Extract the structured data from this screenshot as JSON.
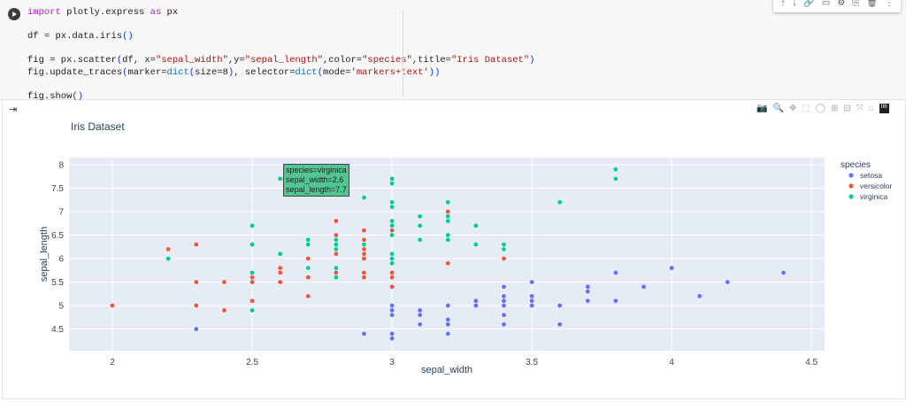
{
  "code": [
    [
      [
        "import",
        "kw"
      ],
      " plotly.express ",
      [
        "as",
        "kw"
      ],
      " px"
    ],
    [],
    [
      "df = px.data.iris",
      [
        "()",
        "par"
      ]
    ],
    [],
    [
      "fig = px.scatter",
      [
        "(",
        "par"
      ],
      "df, x=",
      [
        "\"sepal_width\"",
        "str"
      ],
      ",y=",
      [
        "\"sepal_length\"",
        "str"
      ],
      ",color=",
      [
        "\"species\"",
        "str"
      ],
      ",title=",
      [
        "\"Iris Dataset\"",
        "str"
      ],
      [
        ")",
        "par"
      ]
    ],
    [
      "fig.update_traces",
      [
        "(",
        "par"
      ],
      "marker=",
      [
        "dict",
        "fn"
      ],
      [
        "(",
        "par"
      ],
      "size=8",
      [
        ")",
        "par"
      ],
      ", selector=",
      [
        "dict",
        "fn"
      ],
      [
        "(",
        "par"
      ],
      "mode=",
      [
        "'markers+text'",
        "str"
      ],
      [
        "))",
        "par"
      ]
    ],
    [],
    [
      "fig.show",
      [
        "()",
        "par"
      ]
    ]
  ],
  "cell_toolbar": [
    "↑",
    "↓",
    "🔗",
    "▭",
    "⚙",
    "⎘",
    "🗑",
    "⋮"
  ],
  "modebar": [
    "📷",
    "🔍",
    "✥",
    "⬚",
    "◯",
    "⊞",
    "⊟",
    "⤧",
    "⌂",
    "lılı"
  ],
  "tooltip": [
    "species=virginica",
    "sepal_width=2.6",
    "sepal_length=7.7"
  ],
  "chart_data": {
    "type": "scatter",
    "title": "Iris Dataset",
    "xlabel": "sepal_width",
    "ylabel": "sepal_length",
    "xlim": [
      1.845,
      4.547
    ],
    "ylim": [
      4.04,
      8.15
    ],
    "xticks": [
      "2",
      "2.5",
      "3",
      "3.5",
      "4",
      "4.5"
    ],
    "yticks": [
      "4.5",
      "5",
      "5.5",
      "6",
      "6.5",
      "7",
      "7.5",
      "8"
    ],
    "legend_title": "species",
    "legend_position": "right",
    "series": [
      {
        "name": "setosa",
        "color": "#636efa",
        "points": [
          [
            2.3,
            4.5
          ],
          [
            2.9,
            4.4
          ],
          [
            3,
            5
          ],
          [
            3,
            4.9
          ],
          [
            3,
            4.8
          ],
          [
            3,
            4.4
          ],
          [
            3,
            4.3
          ],
          [
            3.1,
            4.9
          ],
          [
            3.1,
            4.8
          ],
          [
            3.1,
            4.6
          ],
          [
            3.2,
            5
          ],
          [
            3.2,
            4.7
          ],
          [
            3.2,
            4.6
          ],
          [
            3.2,
            4.4
          ],
          [
            3.3,
            5.1
          ],
          [
            3.3,
            5
          ],
          [
            3.4,
            5.4
          ],
          [
            3.4,
            5.2
          ],
          [
            3.4,
            5.1
          ],
          [
            3.4,
            5
          ],
          [
            3.4,
            4.8
          ],
          [
            3.4,
            4.6
          ],
          [
            3.5,
            5.5
          ],
          [
            3.5,
            5.2
          ],
          [
            3.5,
            5.1
          ],
          [
            3.5,
            5
          ],
          [
            3.6,
            5
          ],
          [
            3.6,
            4.6
          ],
          [
            3.7,
            5.4
          ],
          [
            3.7,
            5.3
          ],
          [
            3.7,
            5.1
          ],
          [
            3.8,
            5.7
          ],
          [
            3.8,
            5.1
          ],
          [
            3.9,
            5.4
          ],
          [
            4,
            5.8
          ],
          [
            4.1,
            5.2
          ],
          [
            4.2,
            5.5
          ],
          [
            4.4,
            5.7
          ]
        ]
      },
      {
        "name": "versicolor",
        "color": "#ef553b",
        "points": [
          [
            2,
            5
          ],
          [
            2.2,
            6.2
          ],
          [
            2.3,
            6.3
          ],
          [
            2.3,
            5.5
          ],
          [
            2.3,
            5
          ],
          [
            2.4,
            5.5
          ],
          [
            2.4,
            4.9
          ],
          [
            2.5,
            5.6
          ],
          [
            2.5,
            5.5
          ],
          [
            2.5,
            5.1
          ],
          [
            2.6,
            5.8
          ],
          [
            2.6,
            5.7
          ],
          [
            2.6,
            5.5
          ],
          [
            2.7,
            6
          ],
          [
            2.7,
            5.6
          ],
          [
            2.7,
            5.2
          ],
          [
            2.8,
            6.8
          ],
          [
            2.8,
            6.5
          ],
          [
            2.8,
            6.1
          ],
          [
            2.8,
            5.7
          ],
          [
            2.9,
            6.6
          ],
          [
            2.9,
            6.4
          ],
          [
            2.9,
            6.2
          ],
          [
            2.9,
            6.1
          ],
          [
            2.9,
            6
          ],
          [
            2.9,
            5.7
          ],
          [
            2.9,
            5.6
          ],
          [
            3,
            6.6
          ],
          [
            3,
            5.7
          ],
          [
            3,
            5.6
          ],
          [
            3,
            5.4
          ],
          [
            3.2,
            7
          ],
          [
            3.2,
            5.9
          ],
          [
            3.4,
            6
          ]
        ]
      },
      {
        "name": "virginica",
        "color": "#00cc96",
        "points": [
          [
            2.2,
            6
          ],
          [
            2.5,
            6.7
          ],
          [
            2.5,
            6.3
          ],
          [
            2.5,
            5.7
          ],
          [
            2.5,
            4.9
          ],
          [
            2.6,
            7.7
          ],
          [
            2.6,
            6.1
          ],
          [
            2.7,
            6.4
          ],
          [
            2.7,
            6.3
          ],
          [
            2.7,
            5.8
          ],
          [
            2.8,
            6.4
          ],
          [
            2.8,
            6.3
          ],
          [
            2.8,
            6.2
          ],
          [
            2.8,
            5.8
          ],
          [
            2.8,
            5.6
          ],
          [
            2.9,
            7.3
          ],
          [
            2.9,
            6.3
          ],
          [
            3,
            7.7
          ],
          [
            3,
            7.6
          ],
          [
            3,
            7.2
          ],
          [
            3,
            7.1
          ],
          [
            3,
            6.8
          ],
          [
            3,
            6.7
          ],
          [
            3,
            6.5
          ],
          [
            3,
            6.1
          ],
          [
            3,
            6
          ],
          [
            3,
            5.9
          ],
          [
            3.1,
            6.9
          ],
          [
            3.1,
            6.7
          ],
          [
            3.1,
            6.4
          ],
          [
            3.2,
            7.2
          ],
          [
            3.2,
            6.9
          ],
          [
            3.2,
            6.8
          ],
          [
            3.2,
            6.5
          ],
          [
            3.2,
            6.4
          ],
          [
            3.3,
            6.7
          ],
          [
            3.3,
            6.3
          ],
          [
            3.4,
            6.3
          ],
          [
            3.4,
            6.2
          ],
          [
            3.6,
            7.2
          ],
          [
            3.8,
            7.9
          ],
          [
            3.8,
            7.7
          ]
        ]
      }
    ]
  }
}
